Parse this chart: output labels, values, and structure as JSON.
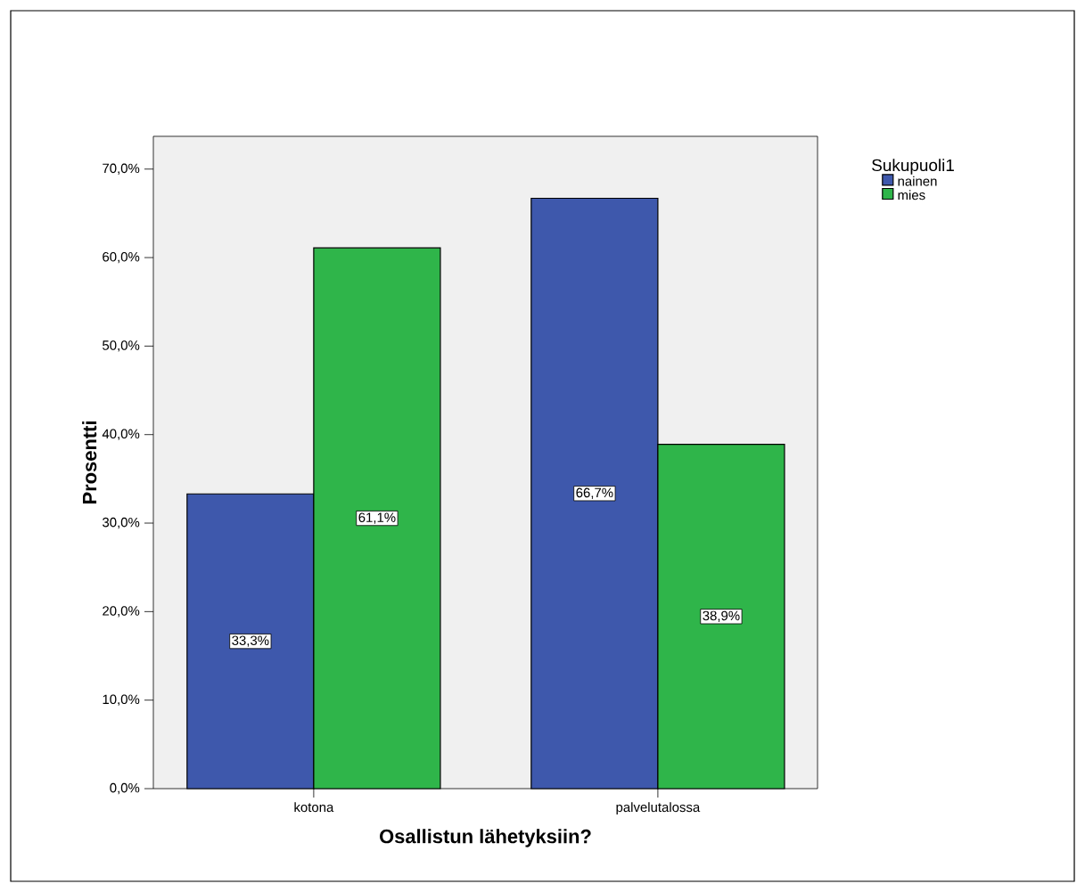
{
  "chart_data": {
    "type": "bar",
    "xlabel": "Osallistun lähetyksiin?",
    "ylabel": "Prosentti",
    "legend_title": "Sukupuoli1",
    "categories": [
      "kotona",
      "palvelutalossa"
    ],
    "series": [
      {
        "name": "nainen",
        "color": "#3e58ac",
        "values": [
          33.3,
          66.7
        ],
        "value_labels": [
          "33,3%",
          "66,7%"
        ]
      },
      {
        "name": "mies",
        "color": "#2fb54a",
        "values": [
          61.1,
          38.9
        ],
        "value_labels": [
          "61,1%",
          "38,9%"
        ]
      }
    ],
    "ylim": [
      0,
      73.7
    ],
    "yticks": [
      {
        "value": 0,
        "label": "0,0%"
      },
      {
        "value": 10,
        "label": "10,0%"
      },
      {
        "value": 20,
        "label": "20,0%"
      },
      {
        "value": 30,
        "label": "30,0%"
      },
      {
        "value": 40,
        "label": "40,0%"
      },
      {
        "value": 50,
        "label": "50,0%"
      },
      {
        "value": 60,
        "label": "60,0%"
      },
      {
        "value": 70,
        "label": "70,0%"
      }
    ],
    "legend": "top right",
    "grid": false
  }
}
